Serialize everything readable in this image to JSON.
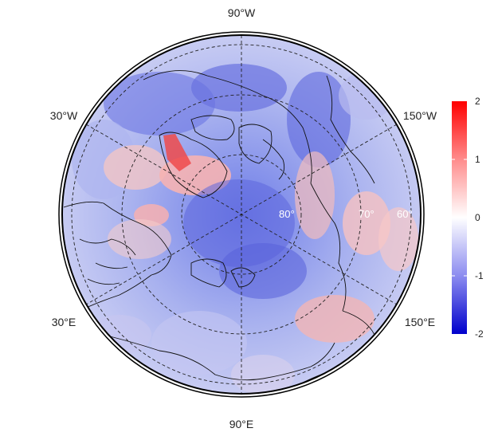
{
  "map": {
    "projection": "polar-stereographic-north",
    "longitude_labels": {
      "top": "90°W",
      "upper_left": "30°W",
      "upper_right": "150°W",
      "lower_left": "30°E",
      "lower_right": "150°E",
      "bottom": "90°E"
    },
    "latitude_labels": [
      "80°",
      "70°",
      "60°"
    ],
    "graticule": "dashed"
  },
  "colorbar": {
    "ticks": [
      "2",
      "1",
      "0",
      "-1",
      "-2"
    ],
    "min": -2,
    "max": 2,
    "colors": {
      "high": "#ff0000",
      "mid": "#ffffff",
      "low": "#0000cc"
    }
  }
}
